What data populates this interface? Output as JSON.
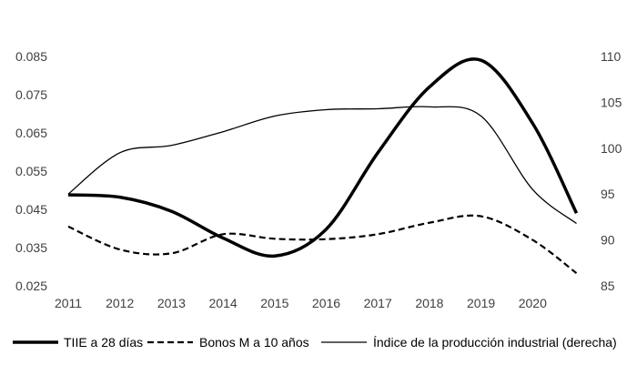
{
  "chart_data": {
    "type": "line",
    "title": "",
    "xlabel": "",
    "ylabel": "",
    "x": [
      2011,
      2012,
      2013,
      2014,
      2015,
      2016,
      2017,
      2018,
      2019,
      2020,
      2021
    ],
    "x_tick_labels": [
      "2011",
      "2012",
      "2013",
      "2014",
      "2015",
      "2016",
      "2017",
      "2018",
      "2019",
      "2020"
    ],
    "y_left": {
      "range": [
        0.025,
        0.085
      ],
      "ticks": [
        "0.025",
        "0.035",
        "0.045",
        "0.055",
        "0.065",
        "0.075",
        "0.085"
      ],
      "tick_values": [
        0.025,
        0.035,
        0.045,
        0.055,
        0.065,
        0.075,
        0.085
      ]
    },
    "y_right": {
      "range": [
        85,
        110
      ],
      "ticks": [
        "85",
        "90",
        "95",
        "100",
        "105",
        "110"
      ],
      "tick_values": [
        85,
        90,
        95,
        100,
        105,
        110
      ]
    },
    "grid": false,
    "legend_position": "bottom",
    "series": [
      {
        "name": "TIIE a 28 días",
        "axis": "left",
        "style": "thick-solid",
        "color": "#000000",
        "x": [
          2011,
          2012,
          2013,
          2014,
          2015,
          2016,
          2017,
          2018,
          2019,
          2020,
          2020.85
        ],
        "values": [
          0.0488,
          0.0482,
          0.0445,
          0.0375,
          0.0328,
          0.0398,
          0.0598,
          0.077,
          0.084,
          0.0675,
          0.044
        ]
      },
      {
        "name": "Bonos M a 10 años",
        "axis": "left",
        "style": "dashed",
        "color": "#000000",
        "x": [
          2011,
          2012,
          2013,
          2014,
          2015,
          2016,
          2017,
          2018,
          2019,
          2020,
          2020.85
        ],
        "values": [
          0.0405,
          0.0345,
          0.0335,
          0.0385,
          0.0373,
          0.0372,
          0.0385,
          0.0415,
          0.0432,
          0.037,
          0.0283
        ]
      },
      {
        "name": "Índice de la producción industrial (derecha)",
        "axis": "right",
        "style": "thin-solid",
        "color": "#000000",
        "x": [
          2011,
          2012,
          2013,
          2014,
          2015,
          2016,
          2017,
          2018,
          2019,
          2020,
          2020.85
        ],
        "values": [
          95.0,
          99.5,
          100.3,
          101.8,
          103.5,
          104.2,
          104.3,
          104.5,
          103.5,
          95.5,
          91.8
        ]
      }
    ]
  }
}
